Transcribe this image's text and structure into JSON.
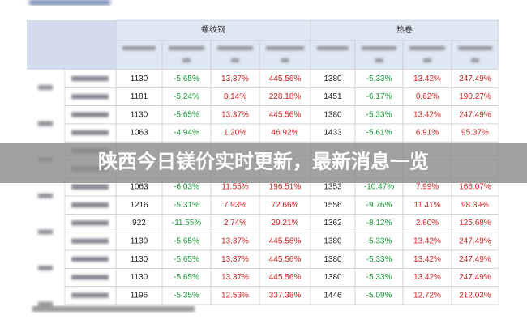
{
  "title": "陕西今日镁价实时更新，最新消息一览",
  "table": {
    "groups": [
      "螺纹钢",
      "热卷"
    ],
    "rows": [
      [
        "1130",
        "-5.65%",
        "13.37%",
        "445.56%",
        "1380",
        "-5.33%",
        "13.42%",
        "247.49%"
      ],
      [
        "1181",
        "-5.24%",
        "8.14%",
        "228.18%",
        "1451",
        "-6.17%",
        "0.62%",
        "190.27%"
      ],
      [
        "1130",
        "-5.65%",
        "13.37%",
        "445.56%",
        "1380",
        "-5.33%",
        "13.42%",
        "247.49%"
      ],
      [
        "1063",
        "-4.94%",
        "1.20%",
        "46.92%",
        "1433",
        "-5.61%",
        "6.91%",
        "95.37%"
      ],
      [
        "1063",
        "-6.03%",
        "11.55%",
        "196.51%",
        "1353",
        "-10.47%",
        "7.99%",
        "166.07%"
      ],
      [
        "1216",
        "-5.31%",
        "7.93%",
        "72.66%",
        "1556",
        "-9.76%",
        "11.41%",
        "98.39%"
      ],
      [
        "922",
        "-11.55%",
        "2.74%",
        "29.21%",
        "1362",
        "-8.12%",
        "2.60%",
        "125.68%"
      ],
      [
        "1130",
        "-5.65%",
        "13.37%",
        "445.56%",
        "1380",
        "-5.33%",
        "13.42%",
        "247.49%"
      ],
      [
        "1130",
        "-5.65%",
        "13.37%",
        "445.56%",
        "1380",
        "-5.33%",
        "13.42%",
        "247.49%"
      ],
      [
        "1130",
        "-5.65%",
        "13.37%",
        "445.56%",
        "1380",
        "-5.33%",
        "13.42%",
        "247.49%"
      ],
      [
        "1196",
        "-5.35%",
        "12.53%",
        "337.38%",
        "1446",
        "-5.09%",
        "12.72%",
        "212.03%"
      ]
    ]
  }
}
